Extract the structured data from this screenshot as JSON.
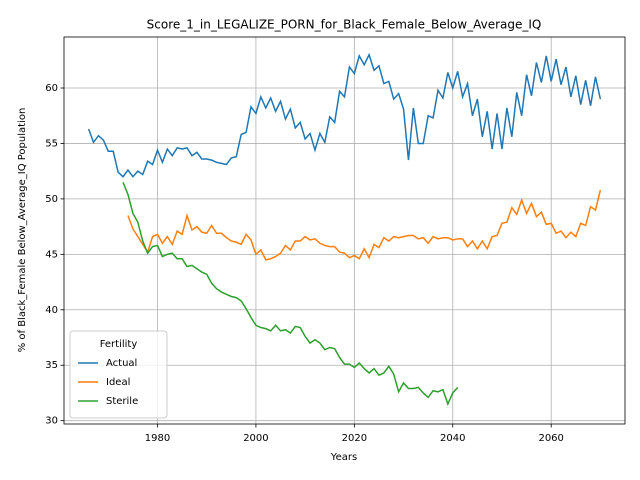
{
  "chart_data": {
    "type": "line",
    "title": "Score_1_in_LEGALIZE_PORN_for_Black_Female_Below_Average_IQ",
    "x_label": "Years",
    "y_label": "% of Black_Female Below_Average_IQ Population",
    "legend_title": "Fertility",
    "legend": "lower left",
    "grid": true,
    "xlim": [
      1961,
      2075
    ],
    "ylim": [
      29.7,
      64.6
    ],
    "xticks": [
      1980,
      2000,
      2020,
      2040,
      2060
    ],
    "yticks": [
      30,
      35,
      40,
      45,
      50,
      55,
      60
    ],
    "x": [
      1966,
      1967,
      1968,
      1969,
      1970,
      1971,
      1972,
      1973,
      1974,
      1975,
      1976,
      1977,
      1978,
      1979,
      1980,
      1981,
      1982,
      1983,
      1984,
      1985,
      1986,
      1987,
      1988,
      1989,
      1990,
      1991,
      1992,
      1993,
      1994,
      1995,
      1996,
      1997,
      1998,
      1999,
      2000,
      2001,
      2002,
      2003,
      2004,
      2005,
      2006,
      2007,
      2008,
      2009,
      2010,
      2011,
      2012,
      2013,
      2014,
      2015,
      2016,
      2017,
      2018,
      2019,
      2020,
      2021,
      2022,
      2023,
      2024,
      2025,
      2026,
      2027,
      2028,
      2029,
      2030,
      2031,
      2032,
      2033,
      2034,
      2035,
      2036,
      2037,
      2038,
      2039,
      2040,
      2041,
      2042,
      2043,
      2044,
      2045,
      2046,
      2047,
      2048,
      2049,
      2050,
      2051,
      2052,
      2053,
      2054,
      2055,
      2056,
      2057,
      2058,
      2059,
      2060,
      2061,
      2062,
      2063,
      2064,
      2065,
      2066,
      2067,
      2068,
      2069,
      2070
    ],
    "series": [
      {
        "name": "Actual",
        "color": "#1f77b4",
        "values": [
          56.3,
          55.1,
          55.7,
          55.3,
          54.3,
          54.3,
          52.4,
          52.0,
          52.6,
          52.0,
          52.5,
          52.2,
          53.4,
          53.1,
          54.4,
          53.3,
          54.5,
          53.9,
          54.6,
          54.5,
          54.6,
          53.9,
          54.2,
          53.6,
          53.6,
          53.5,
          53.3,
          53.2,
          53.1,
          53.7,
          53.8,
          55.8,
          56.0,
          58.3,
          57.7,
          59.2,
          58.2,
          59.1,
          57.9,
          58.8,
          57.2,
          58.1,
          56.4,
          56.9,
          55.4,
          55.9,
          54.4,
          55.9,
          55.1,
          57.4,
          56.9,
          59.7,
          59.2,
          61.9,
          61.3,
          62.9,
          62.1,
          63.0,
          61.6,
          62.0,
          60.4,
          60.6,
          59.0,
          59.5,
          58.1,
          53.5,
          58.2,
          55.0,
          55.0,
          57.5,
          57.3,
          59.8,
          59.1,
          61.4,
          60.0,
          61.5,
          59.2,
          60.4,
          57.5,
          59.0,
          55.6,
          57.9,
          54.5,
          57.7,
          54.5,
          58.2,
          55.6,
          59.6,
          57.5,
          61.2,
          59.3,
          62.3,
          60.5,
          62.9,
          60.6,
          62.6,
          60.3,
          61.9,
          59.2,
          61.1,
          58.5,
          60.7,
          58.4,
          61.0,
          59.0
        ]
      },
      {
        "name": "Ideal",
        "color": "#ff7f0e",
        "values": [
          null,
          null,
          null,
          null,
          null,
          null,
          null,
          null,
          48.5,
          47.3,
          46.6,
          45.9,
          45.2,
          46.6,
          46.8,
          46.0,
          46.6,
          45.9,
          47.1,
          46.8,
          48.5,
          47.2,
          47.5,
          47.0,
          46.9,
          47.6,
          46.9,
          46.9,
          46.5,
          46.2,
          46.1,
          45.9,
          46.8,
          46.3,
          45.0,
          45.4,
          44.5,
          44.6,
          44.8,
          45.1,
          45.8,
          45.4,
          46.2,
          46.2,
          46.6,
          46.3,
          46.4,
          46.0,
          45.8,
          45.7,
          45.7,
          45.2,
          45.1,
          44.7,
          44.9,
          44.6,
          45.5,
          44.7,
          45.9,
          45.6,
          46.5,
          46.2,
          46.6,
          46.5,
          46.6,
          46.7,
          46.7,
          46.4,
          46.5,
          46.0,
          46.6,
          46.4,
          46.5,
          46.5,
          46.3,
          46.4,
          46.4,
          45.7,
          46.2,
          45.5,
          46.2,
          45.5,
          46.6,
          46.7,
          47.8,
          47.9,
          49.2,
          48.6,
          49.9,
          48.7,
          49.6,
          48.4,
          48.8,
          47.7,
          47.8,
          46.9,
          47.1,
          46.5,
          47.0,
          46.6,
          47.8,
          47.6,
          49.3,
          49.0,
          50.8
        ]
      },
      {
        "name": "Sterile",
        "color": "#2ca02c",
        "values": [
          null,
          null,
          null,
          null,
          null,
          null,
          null,
          51.5,
          50.4,
          48.7,
          47.9,
          46.2,
          45.1,
          45.7,
          45.8,
          44.8,
          45.0,
          45.1,
          44.6,
          44.6,
          43.9,
          44.0,
          43.7,
          43.4,
          43.2,
          42.4,
          41.9,
          41.6,
          41.4,
          41.2,
          41.1,
          40.8,
          40.1,
          39.3,
          38.6,
          38.4,
          38.3,
          38.1,
          38.6,
          38.1,
          38.2,
          37.9,
          38.5,
          38.4,
          37.6,
          37.0,
          37.3,
          37.0,
          36.4,
          36.6,
          36.5,
          35.7,
          35.1,
          35.1,
          34.8,
          35.2,
          34.7,
          34.3,
          34.7,
          34.1,
          34.3,
          34.9,
          34.2,
          32.6,
          33.4,
          32.9,
          32.9,
          33.0,
          32.5,
          32.1,
          32.7,
          32.6,
          32.8,
          31.5,
          32.5,
          33.0,
          null,
          null,
          null,
          null,
          null,
          null,
          null,
          null,
          null,
          null,
          null,
          null,
          null,
          null,
          null,
          null,
          null,
          null,
          null,
          null,
          null,
          null,
          null,
          null,
          null,
          null,
          null,
          null,
          null
        ]
      }
    ]
  }
}
